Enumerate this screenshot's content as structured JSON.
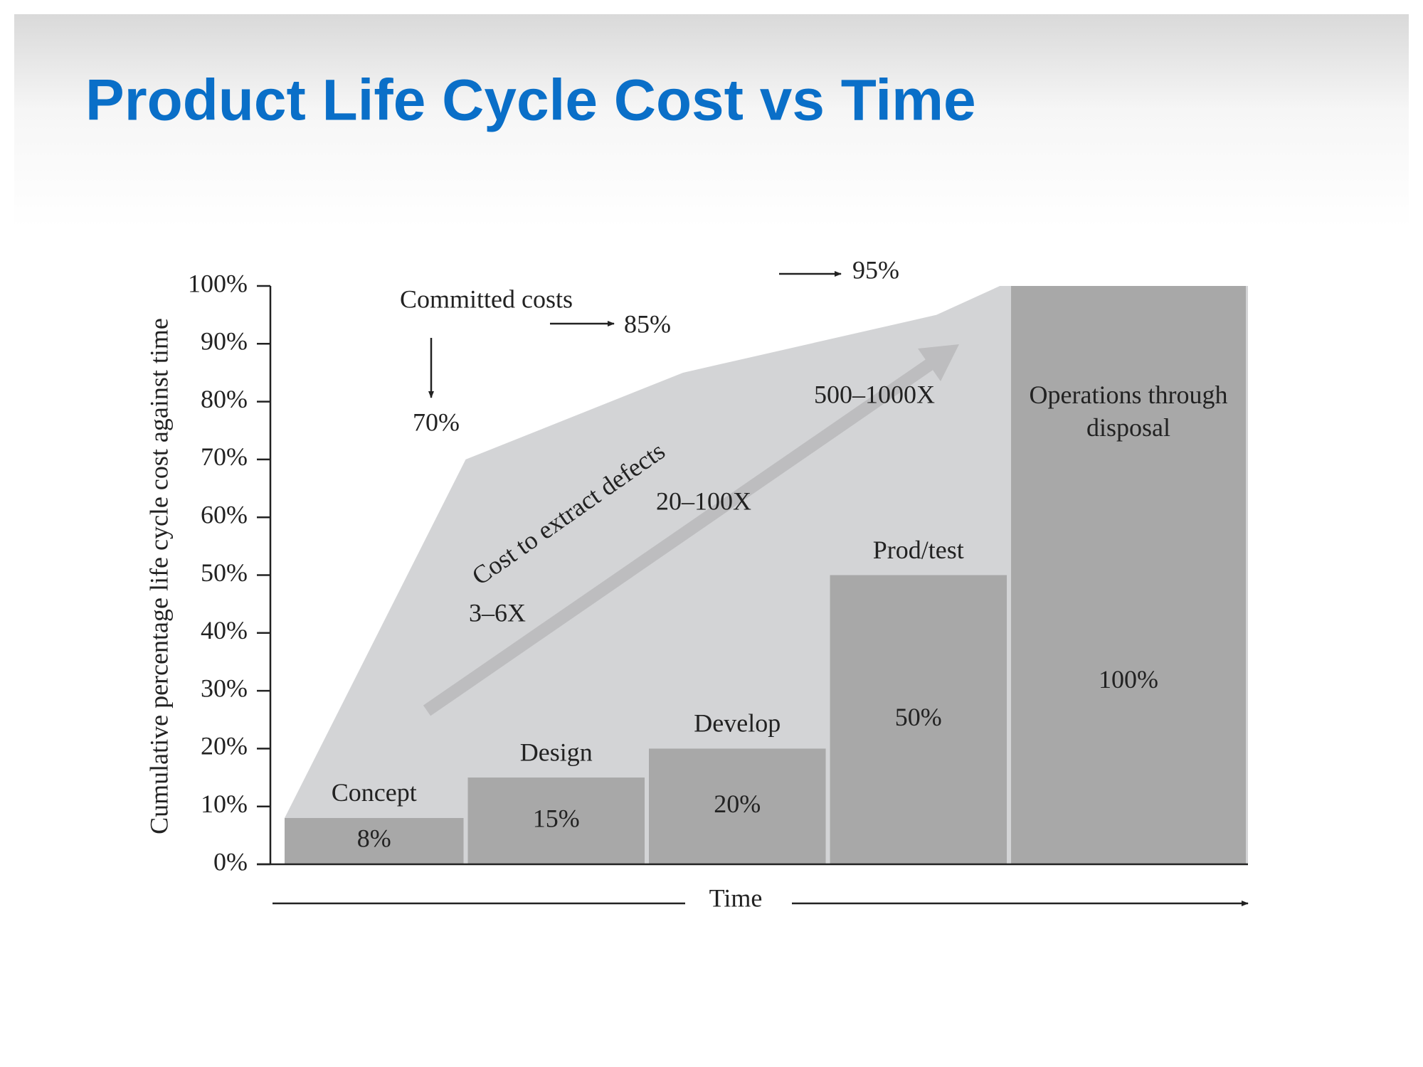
{
  "chart_data": {
    "type": "bar",
    "title": "Product Life Cycle Cost vs Time",
    "y_label": "Cumulative percentage life cycle cost against time",
    "x_label": "Time",
    "categories": [
      "Concept",
      "Design",
      "Develop",
      "Prod/test",
      "Operations through disposal"
    ],
    "values": [
      8,
      15,
      20,
      50,
      100
    ],
    "value_labels": [
      "8%",
      "15%",
      "20%",
      "50%",
      "100%"
    ],
    "color": "#a8a8a8",
    "ylim": [
      0,
      100
    ],
    "yticks": [
      {
        "value": 0,
        "label": "0%"
      },
      {
        "value": 10,
        "label": "10%"
      },
      {
        "value": 20,
        "label": "20%"
      },
      {
        "value": 30,
        "label": "30%"
      },
      {
        "value": 40,
        "label": "40%"
      },
      {
        "value": 50,
        "label": "50%"
      },
      {
        "value": 60,
        "label": "60%"
      },
      {
        "value": 70,
        "label": "70%"
      },
      {
        "value": 80,
        "label": "80%"
      },
      {
        "value": 90,
        "label": "90%"
      },
      {
        "value": 100,
        "label": "100%"
      }
    ],
    "committed": {
      "name": "Committed costs",
      "values": [
        70,
        85,
        95
      ],
      "value_labels": [
        "70%",
        "85%",
        "95%"
      ],
      "color": "#d3d4d6"
    },
    "defects": {
      "title": "Cost to extract defects",
      "labels": [
        "3–6X",
        "20–100X",
        "500–1000X"
      ],
      "color": "#bdbdbf"
    }
  }
}
